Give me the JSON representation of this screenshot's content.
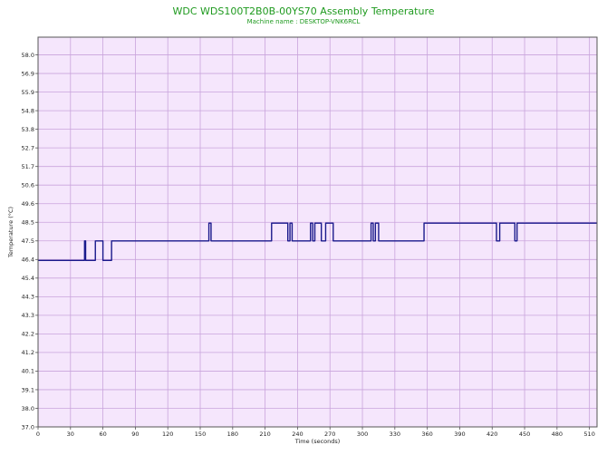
{
  "chart_data": {
    "type": "line",
    "title": "WDC WDS100T2B0B-00YS70 Assembly Temperature",
    "subtitle": "Machine name : DESKTOP-VNK6RCL",
    "xlabel": "Time (seconds)",
    "ylabel": "Temperature (°C)",
    "xlim": [
      0,
      517
    ],
    "ylim": [
      37.0,
      59.0
    ],
    "x_ticks": [
      0,
      30,
      60,
      90,
      120,
      150,
      180,
      210,
      240,
      270,
      300,
      330,
      360,
      390,
      420,
      450,
      480,
      510
    ],
    "y_ticks": [
      "37.0",
      "38.0",
      "39.1",
      "40.1",
      "41.2",
      "42.2",
      "43.3",
      "44.3",
      "45.4",
      "46.4",
      "47.5",
      "48.5",
      "49.6",
      "50.6",
      "51.7",
      "52.7",
      "53.8",
      "54.8",
      "55.9",
      "56.9",
      "58.0"
    ],
    "grid": true,
    "colors": {
      "plot_background": "#f5e6fc",
      "grid": "#c9a4dc",
      "line": "#1a1a8c",
      "title": "#1f9a1f"
    },
    "series": [
      {
        "x": [
          0,
          43,
          43,
          44,
          44,
          53,
          53,
          60,
          60,
          68,
          68,
          158,
          158,
          160,
          160,
          216,
          216,
          231,
          231,
          233,
          233,
          235,
          235,
          252,
          252,
          254,
          254,
          256,
          256,
          262,
          262,
          266,
          266,
          273,
          273,
          308,
          308,
          310,
          310,
          312,
          312,
          315,
          315,
          357,
          357,
          424,
          424,
          427,
          427,
          441,
          441,
          443,
          443,
          517
        ],
        "y": [
          46.4,
          46.4,
          47.5,
          47.5,
          46.4,
          46.4,
          47.5,
          47.5,
          46.4,
          46.4,
          47.5,
          47.5,
          48.5,
          48.5,
          47.5,
          47.5,
          48.5,
          48.5,
          47.5,
          47.5,
          48.5,
          48.5,
          47.5,
          47.5,
          48.5,
          48.5,
          47.5,
          47.5,
          48.5,
          48.5,
          47.5,
          47.5,
          48.5,
          48.5,
          47.5,
          47.5,
          48.5,
          48.5,
          47.5,
          47.5,
          48.5,
          48.5,
          47.5,
          47.5,
          48.5,
          48.5,
          47.5,
          47.5,
          48.5,
          48.5,
          47.5,
          47.5,
          48.5,
          48.5
        ]
      }
    ]
  }
}
